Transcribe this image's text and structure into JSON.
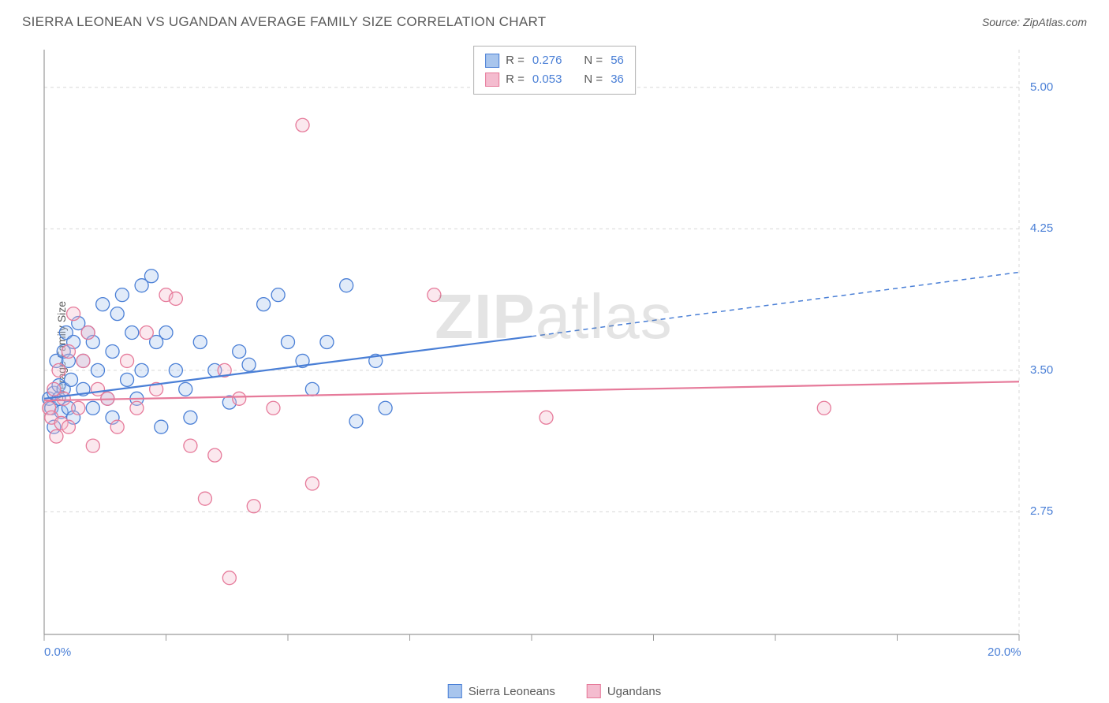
{
  "title": "SIERRA LEONEAN VS UGANDAN AVERAGE FAMILY SIZE CORRELATION CHART",
  "source": "Source: ZipAtlas.com",
  "watermark_bold": "ZIP",
  "watermark_light": "atlas",
  "chart": {
    "type": "scatter",
    "y_axis_label": "Average Family Size",
    "xlim": [
      0,
      20
    ],
    "ylim": [
      2.1,
      5.2
    ],
    "x_ticks": [
      0,
      2.5,
      5,
      7.5,
      10,
      12.5,
      15,
      17.5,
      20
    ],
    "x_tick_labels_shown": {
      "0": "0.0%",
      "20": "20.0%"
    },
    "y_ticks": [
      2.75,
      3.5,
      4.25,
      5.0
    ],
    "y_tick_labels": [
      "2.75",
      "3.50",
      "4.25",
      "5.00"
    ],
    "background_color": "#ffffff",
    "grid_color": "#d8d8d8",
    "axis_color": "#9a9a9a",
    "tick_color": "#9a9a9a",
    "tick_label_color": "#4a7fd6",
    "axis_label_color": "#5a5a5a",
    "marker_radius": 8.5,
    "marker_stroke_width": 1.3,
    "marker_fill_opacity": 0.35,
    "trend_line_width": 2.2,
    "series": [
      {
        "name": "Sierra Leoneans",
        "color_stroke": "#4a7fd6",
        "color_fill": "#a8c5ed",
        "r": "0.276",
        "n": "56",
        "trend": {
          "x1": 0,
          "y1": 3.35,
          "x2_solid": 10,
          "y2_solid": 3.68,
          "x2": 20,
          "y2": 4.02
        },
        "points": [
          [
            0.1,
            3.35
          ],
          [
            0.15,
            3.3
          ],
          [
            0.2,
            3.38
          ],
          [
            0.2,
            3.2
          ],
          [
            0.25,
            3.55
          ],
          [
            0.3,
            3.35
          ],
          [
            0.3,
            3.42
          ],
          [
            0.35,
            3.28
          ],
          [
            0.4,
            3.6
          ],
          [
            0.4,
            3.4
          ],
          [
            0.45,
            3.7
          ],
          [
            0.5,
            3.55
          ],
          [
            0.5,
            3.3
          ],
          [
            0.55,
            3.45
          ],
          [
            0.6,
            3.65
          ],
          [
            0.6,
            3.25
          ],
          [
            0.7,
            3.75
          ],
          [
            0.8,
            3.4
          ],
          [
            0.8,
            3.55
          ],
          [
            0.9,
            3.7
          ],
          [
            1.0,
            3.65
          ],
          [
            1.0,
            3.3
          ],
          [
            1.1,
            3.5
          ],
          [
            1.2,
            3.85
          ],
          [
            1.3,
            3.35
          ],
          [
            1.4,
            3.25
          ],
          [
            1.4,
            3.6
          ],
          [
            1.5,
            3.8
          ],
          [
            1.6,
            3.9
          ],
          [
            1.7,
            3.45
          ],
          [
            1.8,
            3.7
          ],
          [
            1.9,
            3.35
          ],
          [
            2.0,
            3.95
          ],
          [
            2.0,
            3.5
          ],
          [
            2.2,
            4.0
          ],
          [
            2.3,
            3.65
          ],
          [
            2.4,
            3.2
          ],
          [
            2.5,
            3.7
          ],
          [
            2.7,
            3.5
          ],
          [
            2.9,
            3.4
          ],
          [
            3.0,
            3.25
          ],
          [
            3.2,
            3.65
          ],
          [
            3.5,
            3.5
          ],
          [
            3.8,
            3.33
          ],
          [
            4.0,
            3.6
          ],
          [
            4.2,
            3.53
          ],
          [
            4.5,
            3.85
          ],
          [
            4.8,
            3.9
          ],
          [
            5.0,
            3.65
          ],
          [
            5.3,
            3.55
          ],
          [
            5.5,
            3.4
          ],
          [
            5.8,
            3.65
          ],
          [
            6.2,
            3.95
          ],
          [
            6.4,
            3.23
          ],
          [
            6.8,
            3.55
          ],
          [
            7.0,
            3.3
          ]
        ]
      },
      {
        "name": "Ugandans",
        "color_stroke": "#e67a9a",
        "color_fill": "#f4bccf",
        "r": "0.053",
        "n": "36",
        "trend": {
          "x1": 0,
          "y1": 3.34,
          "x2_solid": 20,
          "y2_solid": 3.44,
          "x2": 20,
          "y2": 3.44
        },
        "points": [
          [
            0.1,
            3.3
          ],
          [
            0.15,
            3.25
          ],
          [
            0.2,
            3.4
          ],
          [
            0.25,
            3.15
          ],
          [
            0.3,
            3.5
          ],
          [
            0.35,
            3.22
          ],
          [
            0.4,
            3.35
          ],
          [
            0.5,
            3.6
          ],
          [
            0.5,
            3.2
          ],
          [
            0.6,
            3.8
          ],
          [
            0.7,
            3.3
          ],
          [
            0.8,
            3.55
          ],
          [
            0.9,
            3.7
          ],
          [
            1.0,
            3.1
          ],
          [
            1.1,
            3.4
          ],
          [
            1.3,
            3.35
          ],
          [
            1.5,
            3.2
          ],
          [
            1.7,
            3.55
          ],
          [
            1.9,
            3.3
          ],
          [
            2.1,
            3.7
          ],
          [
            2.3,
            3.4
          ],
          [
            2.5,
            3.9
          ],
          [
            2.7,
            3.88
          ],
          [
            3.0,
            3.1
          ],
          [
            3.3,
            2.82
          ],
          [
            3.5,
            3.05
          ],
          [
            3.7,
            3.5
          ],
          [
            3.8,
            2.4
          ],
          [
            4.0,
            3.35
          ],
          [
            4.3,
            2.78
          ],
          [
            4.7,
            3.3
          ],
          [
            5.3,
            4.8
          ],
          [
            5.5,
            2.9
          ],
          [
            8.0,
            3.9
          ],
          [
            10.3,
            3.25
          ],
          [
            16.0,
            3.3
          ]
        ]
      }
    ]
  },
  "stats_legend": {
    "r_label": "R  =",
    "n_label": "N  ="
  },
  "bottom_legend": {
    "items": [
      "Sierra Leoneans",
      "Ugandans"
    ]
  }
}
